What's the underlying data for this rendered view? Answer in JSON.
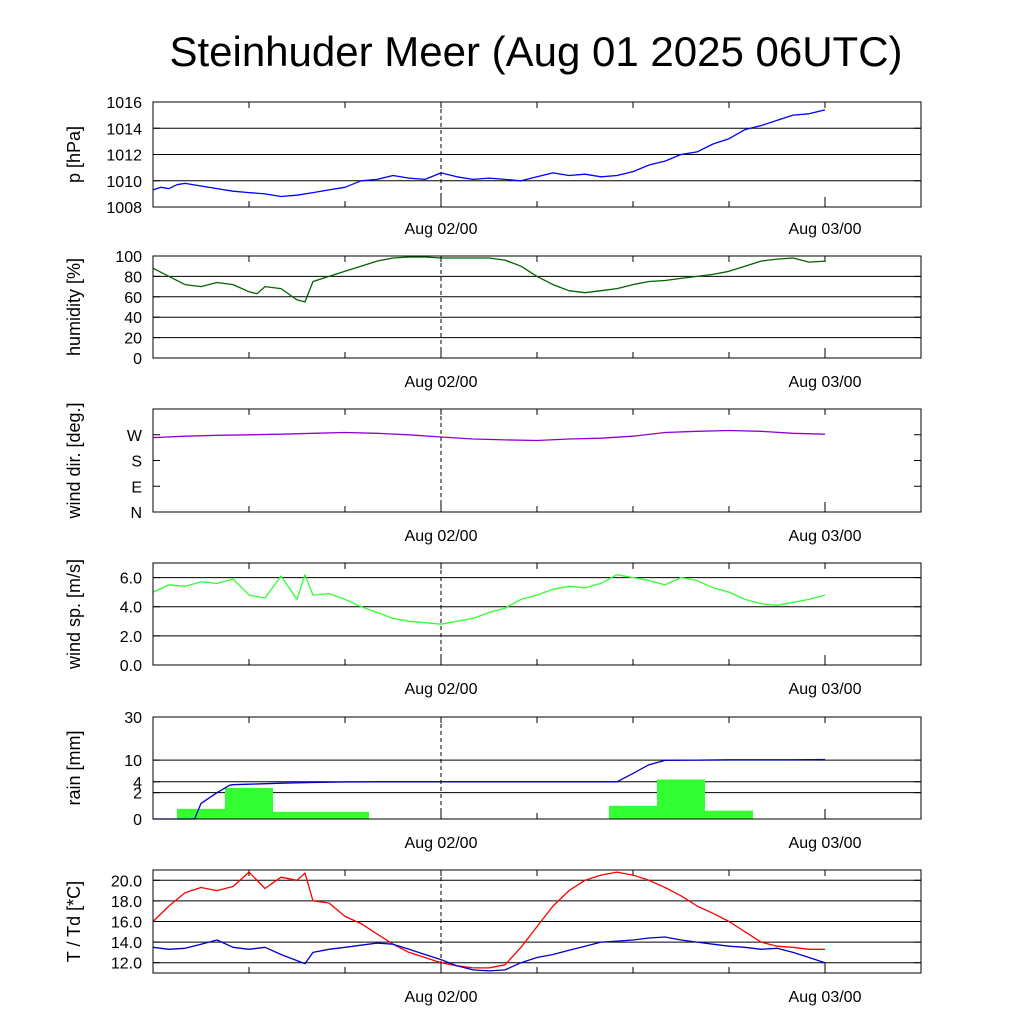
{
  "title": "Steinhuder Meer (Aug 01 2025 06UTC)",
  "chart_data": [
    {
      "type": "line",
      "id": "pressure",
      "ylabel": "p [hPa]",
      "ylim": [
        1008,
        1016
      ],
      "yticks": [
        1008,
        1010,
        1012,
        1014,
        1016
      ],
      "yticklabels": [
        "1008",
        "1010",
        "1012",
        "1014",
        "1016"
      ],
      "grid": true,
      "xlim": [
        0,
        48
      ],
      "xticks": [
        18,
        42
      ],
      "xticklabels": [
        "Aug 02/00",
        "Aug 03/00"
      ],
      "marker_x": 18,
      "series": [
        {
          "color": "#0000ff",
          "x": [
            0,
            0.5,
            1,
            1.5,
            2,
            3,
            4,
            5,
            6,
            7,
            8,
            9,
            10,
            11,
            12,
            13,
            14,
            15,
            16,
            17,
            18,
            19,
            20,
            21,
            22,
            23,
            24,
            25,
            26,
            27,
            28,
            29,
            30,
            31,
            32,
            33,
            34,
            35,
            36,
            37,
            38,
            39,
            40,
            41,
            42
          ],
          "y": [
            1009.3,
            1009.5,
            1009.4,
            1009.7,
            1009.8,
            1009.6,
            1009.4,
            1009.2,
            1009.1,
            1009.0,
            1008.8,
            1008.9,
            1009.1,
            1009.3,
            1009.5,
            1010.0,
            1010.1,
            1010.4,
            1010.2,
            1010.1,
            1010.6,
            1010.3,
            1010.1,
            1010.2,
            1010.1,
            1010.0,
            1010.3,
            1010.6,
            1010.4,
            1010.5,
            1010.3,
            1010.4,
            1010.7,
            1011.2,
            1011.5,
            1012.0,
            1012.2,
            1012.8,
            1013.2,
            1013.9,
            1014.2,
            1014.6,
            1015.0,
            1015.1,
            1015.4
          ]
        }
      ]
    },
    {
      "type": "line",
      "id": "humidity",
      "ylabel": "humidity [%]",
      "ylim": [
        0,
        100
      ],
      "yticks": [
        0,
        20,
        40,
        60,
        80,
        100
      ],
      "yticklabels": [
        "0",
        "20",
        "40",
        "60",
        "80",
        "100"
      ],
      "grid": true,
      "xlim": [
        0,
        48
      ],
      "xticks": [
        18,
        42
      ],
      "xticklabels": [
        "Aug 02/00",
        "Aug 03/00"
      ],
      "marker_x": 18,
      "series": [
        {
          "color": "#006400",
          "x": [
            0,
            1,
            2,
            3,
            4,
            5,
            6,
            6.5,
            7,
            8,
            9,
            9.5,
            10,
            11,
            12,
            13,
            14,
            15,
            16,
            17,
            18,
            19,
            20,
            21,
            22,
            23,
            24,
            25,
            26,
            27,
            28,
            29,
            30,
            31,
            32,
            33,
            34,
            35,
            36,
            37,
            38,
            39,
            40,
            41,
            42
          ],
          "y": [
            88,
            80,
            72,
            70,
            74,
            72,
            65,
            63,
            70,
            68,
            57,
            55,
            75,
            80,
            85,
            90,
            95,
            98,
            99,
            99,
            98,
            98,
            98,
            98,
            96,
            90,
            80,
            72,
            66,
            64,
            66,
            68,
            72,
            75,
            76,
            78,
            80,
            82,
            85,
            90,
            95,
            97,
            98,
            94,
            95
          ]
        }
      ]
    },
    {
      "type": "line",
      "id": "wind_direction",
      "ylabel": "wind dir. [deg.]",
      "ylim": [
        0,
        360
      ],
      "yticks": [
        0,
        90,
        180,
        270
      ],
      "yticklabels": [
        "N",
        "E",
        "S",
        "W"
      ],
      "grid": false,
      "xlim": [
        0,
        48
      ],
      "xticks": [
        18,
        42
      ],
      "xticklabels": [
        "Aug 02/00",
        "Aug 03/00"
      ],
      "marker_x": 18,
      "series": [
        {
          "color": "#9400d3",
          "x": [
            0,
            2,
            4,
            6,
            8,
            10,
            12,
            14,
            16,
            18,
            20,
            22,
            24,
            26,
            28,
            30,
            32,
            34,
            36,
            38,
            40,
            42
          ],
          "y": [
            260,
            265,
            268,
            270,
            272,
            275,
            278,
            275,
            270,
            262,
            255,
            252,
            250,
            255,
            258,
            265,
            278,
            282,
            285,
            282,
            275,
            272
          ]
        }
      ]
    },
    {
      "type": "line",
      "id": "wind_speed",
      "ylabel": "wind sp. [m/s]",
      "ylim": [
        0,
        7
      ],
      "yticks": [
        0,
        2,
        4,
        6
      ],
      "yticklabels": [
        "0.0",
        "2.0",
        "4.0",
        "6.0"
      ],
      "grid": true,
      "xlim": [
        0,
        48
      ],
      "xticks": [
        18,
        42
      ],
      "xticklabels": [
        "Aug 02/00",
        "Aug 03/00"
      ],
      "marker_x": 18,
      "series": [
        {
          "color": "#33ff33",
          "x": [
            0,
            1,
            2,
            3,
            4,
            5,
            6,
            7,
            8,
            9,
            9.5,
            10,
            11,
            12,
            13,
            14,
            15,
            16,
            17,
            18,
            19,
            20,
            21,
            22,
            23,
            24,
            25,
            26,
            27,
            28,
            29,
            30,
            31,
            32,
            33,
            34,
            35,
            36,
            37,
            38,
            39,
            40,
            41,
            42
          ],
          "y": [
            5.0,
            5.5,
            5.4,
            5.7,
            5.6,
            5.9,
            4.8,
            4.6,
            6.1,
            4.5,
            6.2,
            4.8,
            4.9,
            4.5,
            4.0,
            3.6,
            3.2,
            3.0,
            2.9,
            2.8,
            3.0,
            3.2,
            3.6,
            3.9,
            4.5,
            4.8,
            5.2,
            5.4,
            5.3,
            5.6,
            6.2,
            6.0,
            5.8,
            5.5,
            6.0,
            5.8,
            5.3,
            5.0,
            4.5,
            4.2,
            4.1,
            4.3,
            4.5,
            4.8
          ]
        }
      ]
    },
    {
      "type": "bar+line",
      "id": "rain",
      "ylabel": "rain [mm]",
      "scale": "sqrt",
      "ylim": [
        0,
        30
      ],
      "yticks": [
        0,
        2,
        4,
        10,
        30
      ],
      "yticklabels": [
        "0",
        "2",
        "4",
        "10",
        "30"
      ],
      "grid": true,
      "xlim": [
        0,
        48
      ],
      "xticks": [
        18,
        42
      ],
      "xticklabels": [
        "Aug 02/00",
        "Aug 03/00"
      ],
      "marker_x": 18,
      "bars": {
        "color": "#33ff33",
        "x0": [
          1.5,
          4.5,
          7.5,
          28.5,
          31.5,
          34.5
        ],
        "x1": [
          4.5,
          7.5,
          13.5,
          31.5,
          34.5,
          37.5
        ],
        "values": [
          0.3,
          2.8,
          0.15,
          0.5,
          4.5,
          0.2
        ]
      },
      "series": [
        {
          "color": "#0000cc",
          "x": [
            0,
            2,
            2.6,
            3,
            4,
            4.8,
            5,
            6,
            8,
            10,
            12,
            14,
            16,
            18,
            20,
            22,
            24,
            26,
            28,
            29,
            30,
            31,
            32,
            34,
            36,
            38,
            40,
            42
          ],
          "y": [
            0,
            0,
            0,
            0.7,
            2.0,
            3.3,
            3.4,
            3.5,
            3.7,
            3.85,
            3.95,
            4.0,
            4.0,
            4.0,
            4.0,
            4.0,
            4.0,
            4.0,
            4.0,
            4.0,
            6.0,
            8.5,
            9.9,
            10.0,
            10.1,
            10.1,
            10.1,
            10.2
          ]
        }
      ]
    },
    {
      "type": "line",
      "id": "temperature",
      "ylabel": "T / Td [*C]",
      "ylim": [
        11,
        21
      ],
      "yticks": [
        12,
        14,
        16,
        18,
        20
      ],
      "yticklabels": [
        "12.0",
        "14.0",
        "16.0",
        "18.0",
        "20.0"
      ],
      "grid": true,
      "xlim": [
        0,
        48
      ],
      "xticks": [
        18,
        42
      ],
      "xticklabels": [
        "Aug 02/00",
        "Aug 03/00"
      ],
      "marker_x": 18,
      "series": [
        {
          "color": "#ff0000",
          "x": [
            0,
            1,
            2,
            3,
            4,
            5,
            6,
            7,
            8,
            9,
            9.5,
            10,
            11,
            12,
            13,
            14,
            15,
            16,
            17,
            18,
            19,
            20,
            21,
            22,
            23,
            24,
            25,
            26,
            27,
            28,
            29,
            30,
            31,
            32,
            33,
            34,
            35,
            36,
            37,
            38,
            39,
            40,
            41,
            42
          ],
          "y": [
            16.0,
            17.5,
            18.8,
            19.3,
            19.0,
            19.4,
            20.8,
            19.2,
            20.3,
            20.0,
            20.7,
            18.0,
            17.8,
            16.5,
            15.8,
            14.8,
            13.8,
            13.0,
            12.5,
            12.0,
            11.7,
            11.5,
            11.5,
            11.8,
            13.5,
            15.5,
            17.5,
            19.0,
            20.0,
            20.5,
            20.8,
            20.5,
            20.0,
            19.3,
            18.5,
            17.5,
            16.8,
            16.0,
            15.0,
            14.0,
            13.6,
            13.5,
            13.3,
            13.3
          ]
        },
        {
          "color": "#0000cc",
          "x": [
            0,
            1,
            2,
            3,
            4,
            5,
            6,
            7,
            8,
            9,
            9.5,
            10,
            11,
            12,
            13,
            14,
            15,
            16,
            17,
            18,
            19,
            20,
            21,
            22,
            23,
            24,
            25,
            26,
            27,
            28,
            29,
            30,
            31,
            32,
            33,
            34,
            35,
            36,
            37,
            38,
            39,
            40,
            41,
            42
          ],
          "y": [
            13.5,
            13.3,
            13.4,
            13.8,
            14.2,
            13.5,
            13.3,
            13.5,
            12.8,
            12.2,
            11.9,
            13.0,
            13.3,
            13.5,
            13.7,
            13.9,
            13.8,
            13.3,
            12.8,
            12.3,
            11.7,
            11.3,
            11.2,
            11.3,
            12.0,
            12.5,
            12.8,
            13.2,
            13.6,
            14.0,
            14.1,
            14.2,
            14.4,
            14.5,
            14.2,
            14.0,
            13.8,
            13.6,
            13.5,
            13.3,
            13.4,
            13.0,
            12.5,
            12.0
          ]
        }
      ]
    }
  ]
}
